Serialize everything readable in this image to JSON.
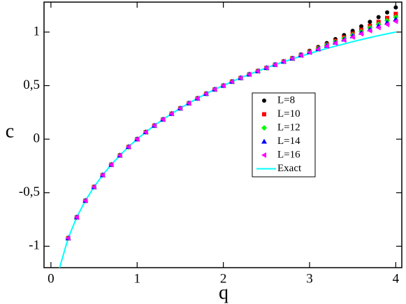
{
  "chart_data": {
    "type": "scatter",
    "x_label": "q",
    "y_label": "c",
    "x": [
      0.1,
      0.2,
      0.3,
      0.4,
      0.5,
      0.6,
      0.7,
      0.8,
      0.9,
      1.0,
      1.1,
      1.2,
      1.3,
      1.4,
      1.5,
      1.6,
      1.7,
      1.8,
      1.9,
      2.0,
      2.1,
      2.2,
      2.3,
      2.4,
      2.5,
      2.6,
      2.7,
      2.8,
      2.9,
      3.0,
      3.1,
      3.2,
      3.3,
      3.4,
      3.5,
      3.6,
      3.7,
      3.8,
      3.9,
      4.0
    ],
    "xlim": [
      -0.08,
      4.07
    ],
    "ylim": [
      -1.2,
      1.28
    ],
    "xticks": [
      0,
      1,
      2,
      3,
      4
    ],
    "yticks": [
      -1,
      {
        "value": -0.5,
        "label": "-0,5"
      },
      0,
      {
        "value": 0.5,
        "label": "0,5"
      },
      1
    ],
    "legend": "center-right",
    "series": [
      {
        "name": "L=8",
        "color": "#000000",
        "marker": "circle",
        "values": [
          null,
          -0.924,
          -0.729,
          -0.574,
          -0.446,
          -0.335,
          -0.238,
          -0.151,
          -0.072,
          0,
          0.066,
          0.127,
          0.184,
          0.238,
          0.288,
          0.336,
          0.381,
          0.424,
          0.465,
          0.5,
          0.538,
          0.572,
          0.605,
          0.636,
          0.666,
          0.696,
          0.727,
          0.758,
          0.791,
          0.826,
          0.861,
          0.897,
          0.934,
          0.972,
          1.012,
          1.054,
          1.096,
          1.14,
          1.184,
          1.23
        ]
      },
      {
        "name": "L=10",
        "color": "#ff0000",
        "marker": "square",
        "values": [
          null,
          -0.924,
          -0.729,
          -0.574,
          -0.446,
          -0.335,
          -0.238,
          -0.151,
          -0.072,
          0,
          0.066,
          0.127,
          0.184,
          0.238,
          0.288,
          0.336,
          0.381,
          0.424,
          0.465,
          0.5,
          0.538,
          0.572,
          0.605,
          0.636,
          0.666,
          0.696,
          0.726,
          0.756,
          0.787,
          0.819,
          0.851,
          0.884,
          0.917,
          0.95,
          0.985,
          1.021,
          1.058,
          1.095,
          1.132,
          1.17
        ]
      },
      {
        "name": "L=12",
        "color": "#00ff00",
        "marker": "diamond",
        "values": [
          null,
          -0.924,
          -0.729,
          -0.574,
          -0.446,
          -0.335,
          -0.238,
          -0.151,
          -0.072,
          0,
          0.066,
          0.127,
          0.184,
          0.238,
          0.288,
          0.336,
          0.381,
          0.424,
          0.465,
          0.5,
          0.538,
          0.572,
          0.605,
          0.636,
          0.666,
          0.696,
          0.725,
          0.755,
          0.785,
          0.816,
          0.846,
          0.878,
          0.909,
          0.939,
          0.972,
          1.005,
          1.039,
          1.072,
          1.106,
          1.14
        ]
      },
      {
        "name": "L=14",
        "color": "#0000ff",
        "marker": "triangle-up",
        "values": [
          null,
          -0.924,
          -0.729,
          -0.574,
          -0.446,
          -0.335,
          -0.238,
          -0.151,
          -0.072,
          0,
          0.066,
          0.127,
          0.184,
          0.238,
          0.288,
          0.336,
          0.381,
          0.424,
          0.465,
          0.5,
          0.538,
          0.572,
          0.605,
          0.636,
          0.666,
          0.696,
          0.725,
          0.754,
          0.784,
          0.813,
          0.843,
          0.873,
          0.903,
          0.932,
          0.963,
          0.995,
          1.026,
          1.057,
          1.089,
          1.12
        ]
      },
      {
        "name": "L=16",
        "color": "#ff00ff",
        "marker": "triangle-left",
        "values": [
          null,
          -0.924,
          -0.729,
          -0.574,
          -0.446,
          -0.335,
          -0.238,
          -0.151,
          -0.072,
          0,
          0.066,
          0.127,
          0.184,
          0.238,
          0.288,
          0.336,
          0.381,
          0.424,
          0.465,
          0.5,
          0.538,
          0.572,
          0.605,
          0.636,
          0.666,
          0.695,
          0.725,
          0.753,
          0.782,
          0.811,
          0.84,
          0.869,
          0.897,
          0.925,
          0.954,
          0.984,
          1.013,
          1.042,
          1.071,
          1.1
        ]
      },
      {
        "name": "Exact",
        "color": "#00ffff",
        "marker": "line",
        "values": [
          -1.202,
          -0.924,
          -0.729,
          -0.574,
          -0.446,
          -0.335,
          -0.238,
          -0.151,
          -0.072,
          0,
          0.066,
          0.127,
          0.184,
          0.238,
          0.288,
          0.336,
          0.381,
          0.424,
          0.465,
          0.5,
          0.538,
          0.572,
          0.605,
          0.636,
          0.666,
          0.695,
          0.723,
          0.749,
          0.775,
          0.8,
          0.824,
          0.847,
          0.869,
          0.889,
          0.91,
          0.93,
          0.949,
          0.967,
          0.984,
          1
        ]
      }
    ]
  }
}
